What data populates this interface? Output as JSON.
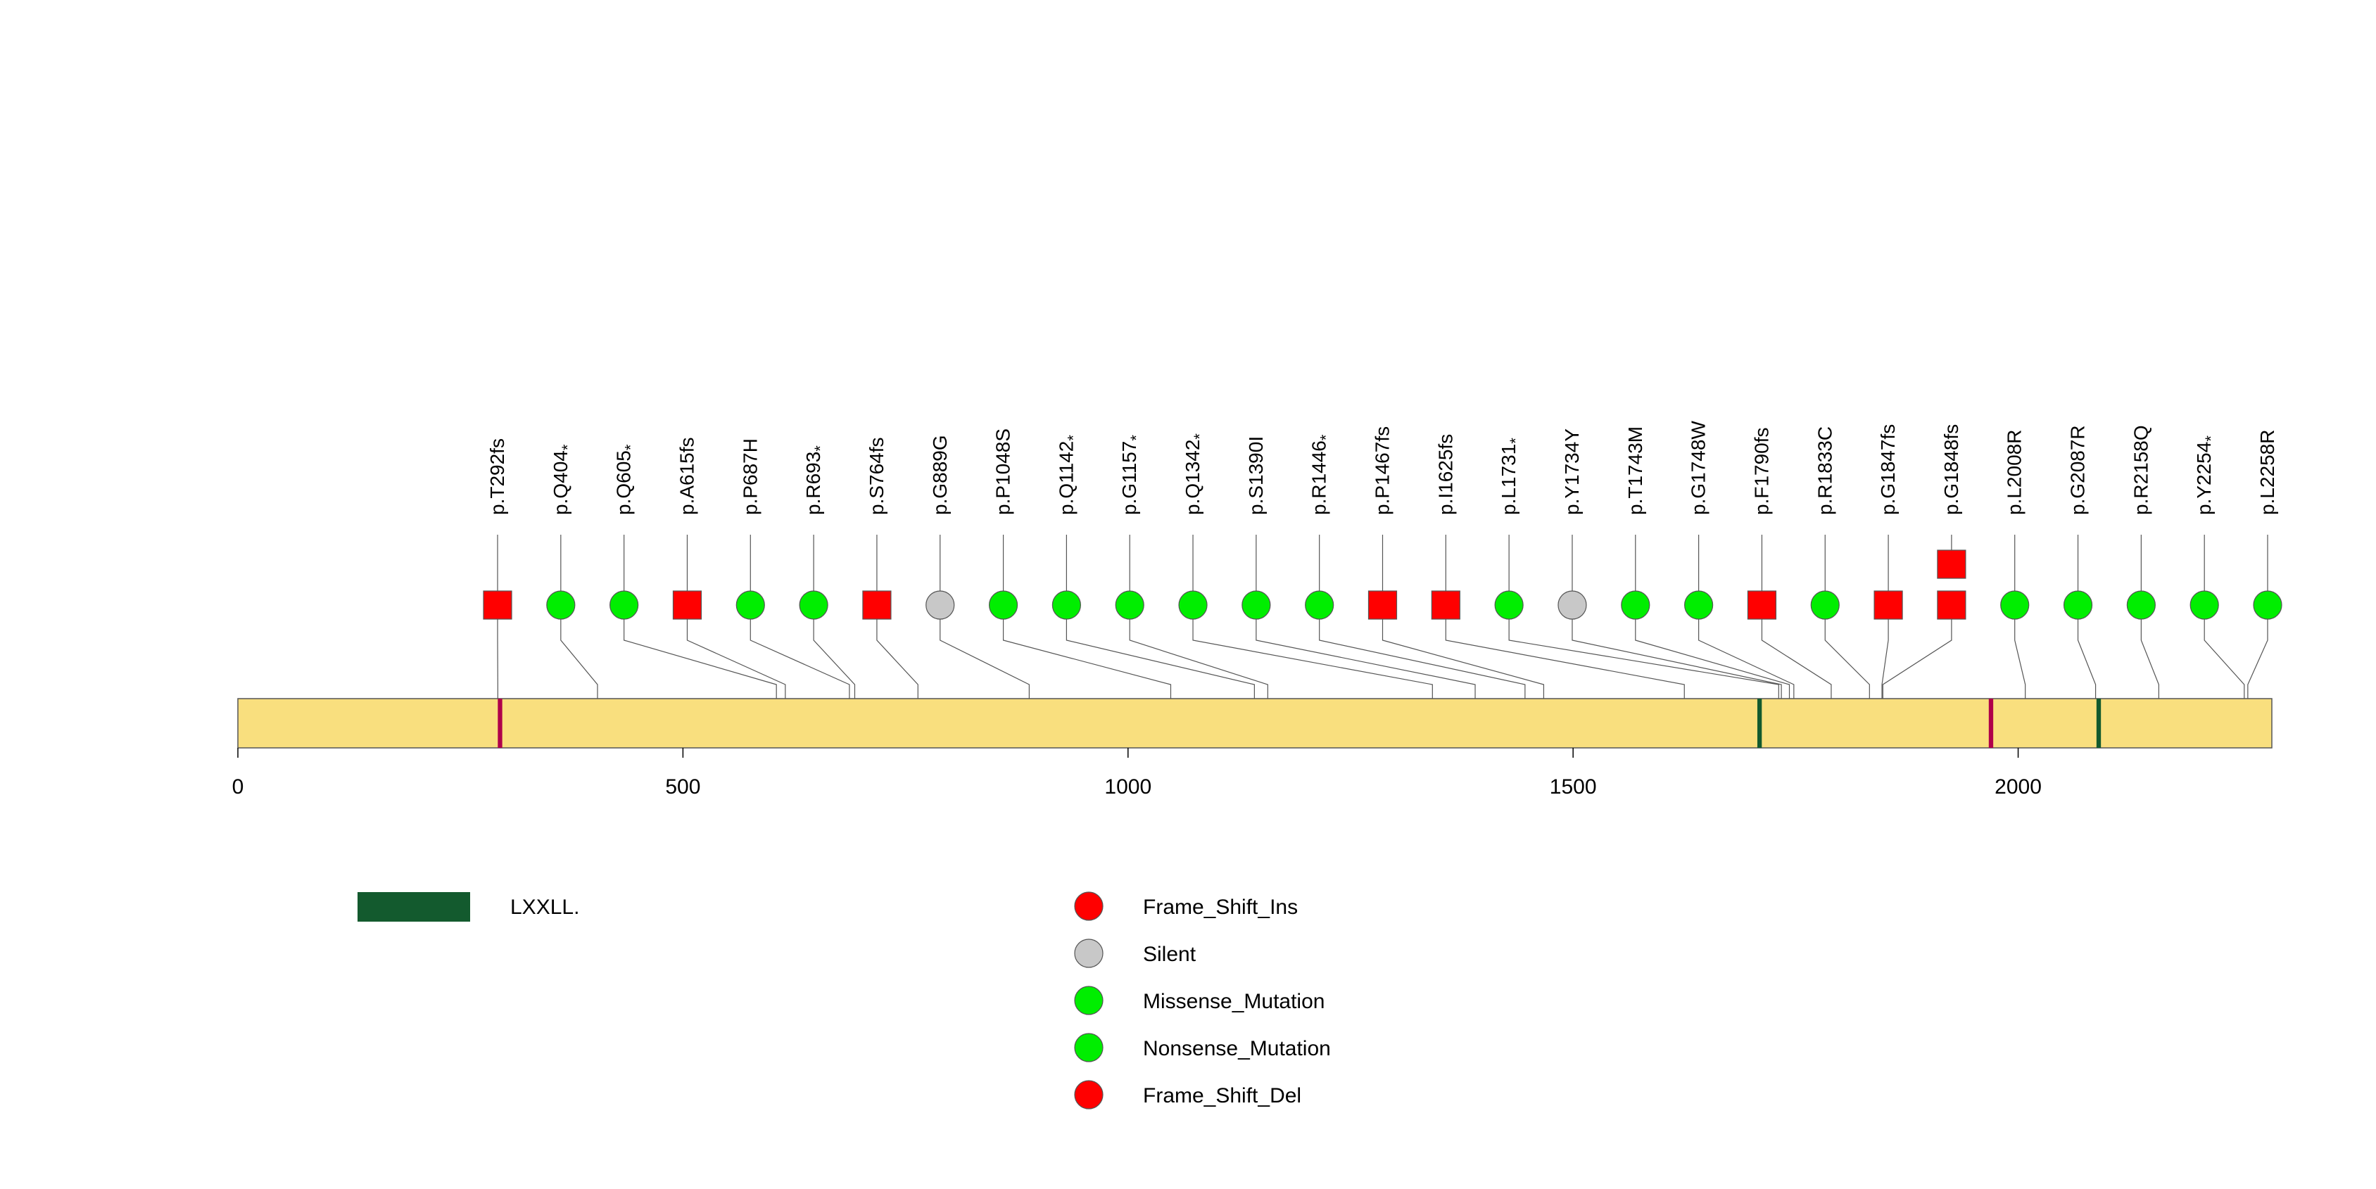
{
  "chart_data": {
    "type": "lollipop",
    "protein_length": 2285,
    "xlim": [
      0,
      2285
    ],
    "x_ticks": [
      0,
      500,
      1000,
      1500,
      2000
    ],
    "domains": [
      {
        "name": "LXXLL.",
        "start": 292,
        "end": 297,
        "color": "#b0004a"
      },
      {
        "name": "LXXLL.",
        "start": 1707,
        "end": 1712,
        "color": "#135a2e"
      },
      {
        "name": "LXXLL.",
        "start": 1967,
        "end": 1972,
        "color": "#b0004a"
      },
      {
        "name": "LXXLL.",
        "start": 2088,
        "end": 2093,
        "color": "#135a2e"
      }
    ],
    "mutations": [
      {
        "label": "p.T292fs",
        "pos": 292,
        "type": "Frame_Shift_Ins",
        "shape": "square",
        "count": 1,
        "nonsense": false
      },
      {
        "label": "p.Q404",
        "pos": 404,
        "type": "Nonsense_Mutation",
        "shape": "circle",
        "count": 1,
        "nonsense": true
      },
      {
        "label": "p.Q605",
        "pos": 605,
        "type": "Nonsense_Mutation",
        "shape": "circle",
        "count": 1,
        "nonsense": true
      },
      {
        "label": "p.A615fs",
        "pos": 615,
        "type": "Frame_Shift_Del",
        "shape": "square",
        "count": 1,
        "nonsense": false
      },
      {
        "label": "p.P687H",
        "pos": 687,
        "type": "Missense_Mutation",
        "shape": "circle",
        "count": 1,
        "nonsense": false
      },
      {
        "label": "p.R693",
        "pos": 693,
        "type": "Nonsense_Mutation",
        "shape": "circle",
        "count": 1,
        "nonsense": true
      },
      {
        "label": "p.S764fs",
        "pos": 764,
        "type": "Frame_Shift_Del",
        "shape": "square",
        "count": 1,
        "nonsense": false
      },
      {
        "label": "p.G889G",
        "pos": 889,
        "type": "Silent",
        "shape": "circle",
        "count": 1,
        "nonsense": false
      },
      {
        "label": "p.P1048S",
        "pos": 1048,
        "type": "Missense_Mutation",
        "shape": "circle",
        "count": 1,
        "nonsense": false
      },
      {
        "label": "p.Q1142",
        "pos": 1142,
        "type": "Nonsense_Mutation",
        "shape": "circle",
        "count": 1,
        "nonsense": true
      },
      {
        "label": "p.G1157",
        "pos": 1157,
        "type": "Nonsense_Mutation",
        "shape": "circle",
        "count": 1,
        "nonsense": true
      },
      {
        "label": "p.Q1342",
        "pos": 1342,
        "type": "Nonsense_Mutation",
        "shape": "circle",
        "count": 1,
        "nonsense": true
      },
      {
        "label": "p.S1390I",
        "pos": 1390,
        "type": "Missense_Mutation",
        "shape": "circle",
        "count": 1,
        "nonsense": false
      },
      {
        "label": "p.R1446",
        "pos": 1446,
        "type": "Nonsense_Mutation",
        "shape": "circle",
        "count": 1,
        "nonsense": true
      },
      {
        "label": "p.P1467fs",
        "pos": 1467,
        "type": "Frame_Shift_Del",
        "shape": "square",
        "count": 1,
        "nonsense": false
      },
      {
        "label": "p.I1625fs",
        "pos": 1625,
        "type": "Frame_Shift_Del",
        "shape": "square",
        "count": 1,
        "nonsense": false
      },
      {
        "label": "p.L1731",
        "pos": 1731,
        "type": "Nonsense_Mutation",
        "shape": "circle",
        "count": 1,
        "nonsense": true
      },
      {
        "label": "p.Y1734Y",
        "pos": 1734,
        "type": "Silent",
        "shape": "circle",
        "count": 1,
        "nonsense": false
      },
      {
        "label": "p.T1743M",
        "pos": 1743,
        "type": "Missense_Mutation",
        "shape": "circle",
        "count": 1,
        "nonsense": false
      },
      {
        "label": "p.G1748W",
        "pos": 1748,
        "type": "Missense_Mutation",
        "shape": "circle",
        "count": 1,
        "nonsense": false
      },
      {
        "label": "p.F1790fs",
        "pos": 1790,
        "type": "Frame_Shift_Del",
        "shape": "square",
        "count": 1,
        "nonsense": false
      },
      {
        "label": "p.R1833C",
        "pos": 1833,
        "type": "Missense_Mutation",
        "shape": "circle",
        "count": 1,
        "nonsense": false
      },
      {
        "label": "p.G1847fs",
        "pos": 1847,
        "type": "Frame_Shift_Del",
        "shape": "square",
        "count": 1,
        "nonsense": false
      },
      {
        "label": "p.G1848fs",
        "pos": 1848,
        "type": "Frame_Shift_Del",
        "shape": "square",
        "count": 2,
        "nonsense": false
      },
      {
        "label": "p.L2008R",
        "pos": 2008,
        "type": "Missense_Mutation",
        "shape": "circle",
        "count": 1,
        "nonsense": false
      },
      {
        "label": "p.G2087R",
        "pos": 2087,
        "type": "Missense_Mutation",
        "shape": "circle",
        "count": 1,
        "nonsense": false
      },
      {
        "label": "p.R2158Q",
        "pos": 2158,
        "type": "Missense_Mutation",
        "shape": "circle",
        "count": 1,
        "nonsense": false
      },
      {
        "label": "p.Y2254",
        "pos": 2254,
        "type": "Nonsense_Mutation",
        "shape": "circle",
        "count": 1,
        "nonsense": true
      },
      {
        "label": "p.L2258R",
        "pos": 2258,
        "type": "Missense_Mutation",
        "shape": "circle",
        "count": 1,
        "nonsense": false
      }
    ],
    "legend_domains": [
      {
        "name": "LXXLL.",
        "color": "#135a2e"
      }
    ],
    "legend_mutations": [
      {
        "name": "Frame_Shift_Ins",
        "color": "#ff0000"
      },
      {
        "name": "Silent",
        "color": "#c8c8c8"
      },
      {
        "name": "Missense_Mutation",
        "color": "#00ee00"
      },
      {
        "name": "Nonsense_Mutation",
        "color": "#00ee00"
      },
      {
        "name": "Frame_Shift_Del",
        "color": "#ff0000"
      }
    ]
  },
  "colors": {
    "protein_bar": "#f9df7e",
    "frame_shift": "#ff0000",
    "silent": "#c8c8c8",
    "missense": "#00ee00",
    "nonsense": "#00ee00",
    "stroke": "#555555"
  },
  "nonsense_marker": "*"
}
